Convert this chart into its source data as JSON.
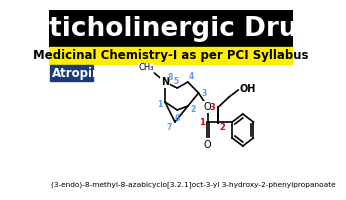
{
  "title": "Anticholinergic Drugs",
  "subtitle": "Medicinal Chemistry-I as per PCI Syllabus",
  "drug_label": "Atropine",
  "iupac_name": "(3-endo)-8-methyl-8-azabicyclo[3.2.1]oct-3-yl 3-hydroxy-2-phenylpropanoate",
  "bg_color": "#ffffff",
  "title_bg": "#000000",
  "title_color": "#ffffff",
  "subtitle_bg": "#ffee00",
  "subtitle_color": "#000000",
  "drug_bg": "#1a3a7a",
  "drug_color": "#ffffff",
  "num_color_blue": "#5599ff",
  "num_color_red": "#dd0000",
  "structure_color": "#000000",
  "title_fontsize": 19,
  "subtitle_fontsize": 8.5,
  "drug_fontsize": 8.5,
  "iupac_fontsize": 5.3
}
